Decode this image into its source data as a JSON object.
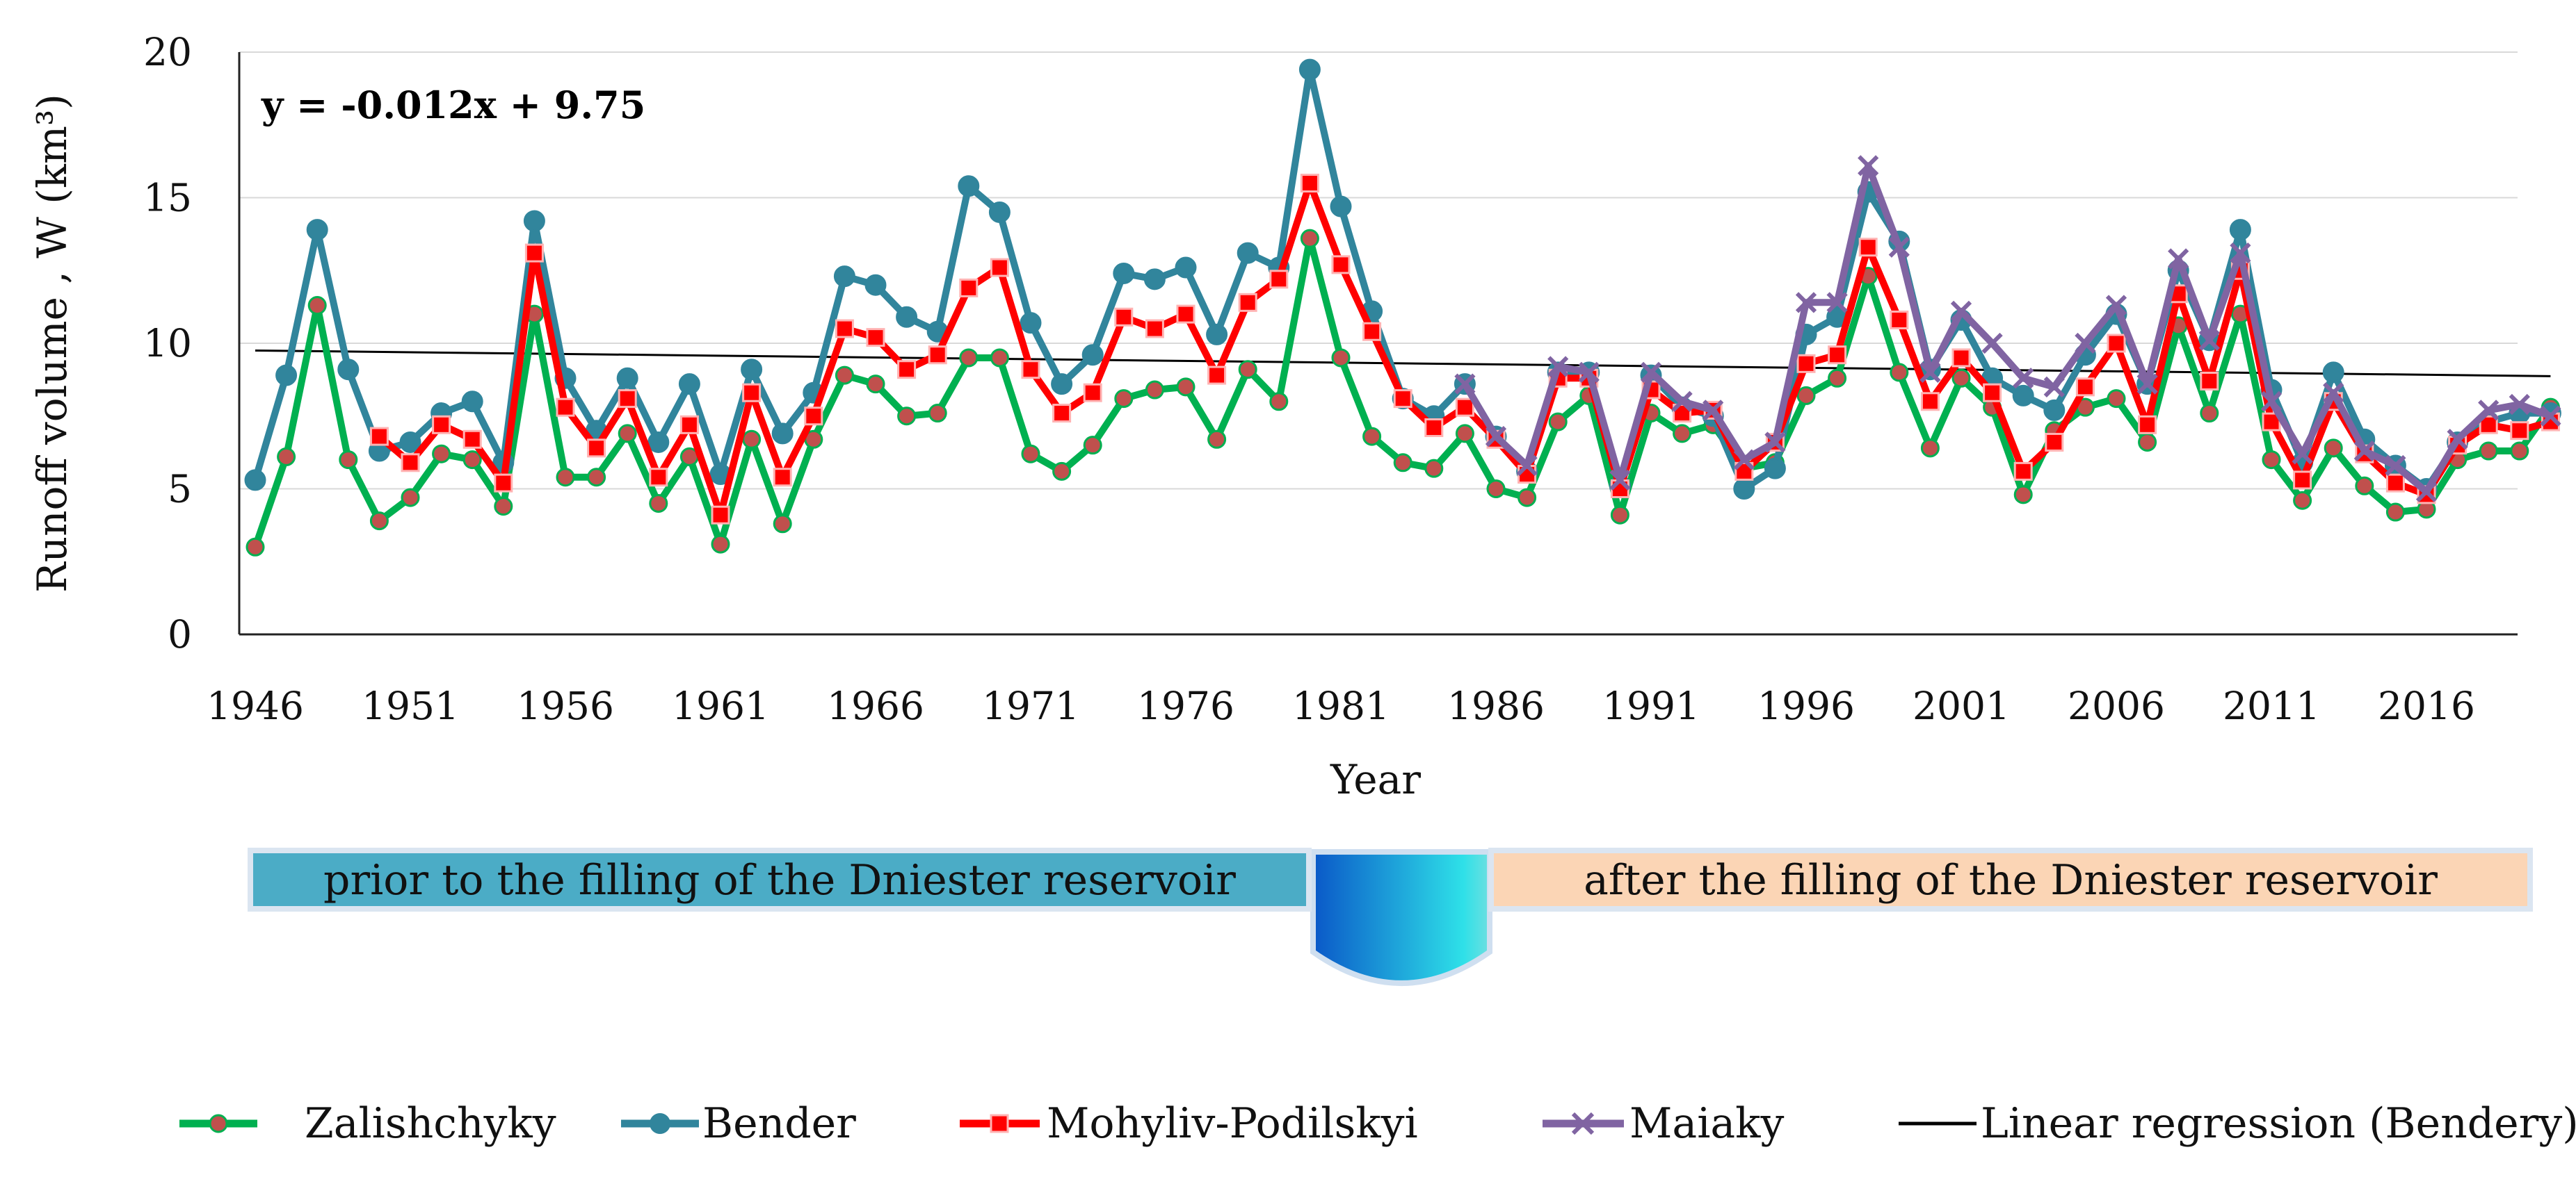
{
  "chart_data": {
    "type": "line",
    "title": "",
    "xlabel": "Year",
    "ylabel": "Runoff volume , W (km³)",
    "xlim": [
      1946,
      2020
    ],
    "ylim": [
      0,
      20
    ],
    "x_ticks": [
      "1946",
      "1951",
      "1956",
      "1961",
      "1966",
      "1971",
      "1976",
      "1981",
      "1986",
      "1991",
      "1996",
      "2001",
      "2006",
      "2011",
      "2016"
    ],
    "y_ticks": [
      "0",
      "5",
      "10",
      "15",
      "20"
    ],
    "grid": true,
    "legend_position": "bottom",
    "annotation": "y = -0.012x + 9.75",
    "regression": {
      "name": "Linear regression (Bendery)",
      "x0": 1946,
      "y0": 9.75,
      "x1": 2020,
      "y1": 8.87,
      "color": "#000000"
    },
    "periods": [
      {
        "label": "prior to the filling of the Dniester reservoir",
        "color": "#4bacc6"
      },
      {
        "label": "after the filling of the Dniester reservoir",
        "color": "#fbd5b5"
      }
    ],
    "series": [
      {
        "name": "Zalishchyky",
        "color": "#00b050",
        "marker": "circle",
        "marker_color": "#c0504d",
        "start": 1946,
        "values": [
          3.0,
          6.1,
          11.3,
          6.0,
          3.9,
          4.7,
          6.2,
          6.0,
          4.4,
          11.0,
          5.4,
          5.4,
          6.9,
          4.5,
          6.1,
          3.1,
          6.7,
          3.8,
          6.7,
          8.9,
          8.6,
          7.5,
          7.6,
          9.5,
          9.5,
          6.2,
          5.6,
          6.5,
          8.1,
          8.4,
          8.5,
          6.7,
          9.1,
          8.0,
          13.6,
          9.5,
          6.8,
          5.9,
          5.7,
          6.9,
          5.0,
          4.7,
          7.3,
          8.2,
          4.1,
          7.6,
          6.9,
          7.2,
          5.7,
          5.9,
          8.2,
          8.8,
          12.3,
          9.0,
          6.4,
          8.8,
          7.8,
          4.8,
          7.0,
          7.8,
          8.1,
          6.6,
          10.6,
          7.6,
          11.0,
          6.0,
          4.6,
          6.4,
          5.1,
          4.2,
          4.3,
          6.0,
          6.3,
          6.3,
          7.8
        ]
      },
      {
        "name": "Bender",
        "color": "#31859c",
        "marker": "circle",
        "marker_color": "#31859c",
        "start": 1946,
        "values": [
          5.3,
          8.9,
          13.9,
          9.1,
          6.3,
          6.6,
          7.6,
          8.0,
          5.9,
          14.2,
          8.8,
          7.0,
          8.8,
          6.6,
          8.6,
          5.5,
          9.1,
          6.9,
          8.3,
          12.3,
          12.0,
          10.9,
          10.4,
          15.4,
          14.5,
          10.7,
          8.6,
          9.6,
          12.4,
          12.2,
          12.6,
          10.3,
          13.1,
          12.6,
          19.4,
          14.7,
          11.1,
          8.1,
          7.5,
          8.6,
          6.8,
          5.6,
          9.0,
          9.0,
          5.1,
          8.9,
          7.8,
          7.5,
          5.0,
          5.7,
          10.3,
          10.9,
          15.2,
          13.5,
          9.1,
          10.8,
          8.8,
          8.2,
          7.7,
          9.6,
          11.0,
          8.6,
          12.5,
          10.1,
          13.9,
          8.4,
          5.9,
          9.0,
          6.7,
          5.8,
          5.0,
          6.6,
          7.3,
          7.6,
          7.6
        ]
      },
      {
        "name": "Mohyliv-Podilskyi",
        "color": "#ff0000",
        "marker": "star",
        "marker_color": "#ff0000",
        "start": 1946,
        "values": [
          null,
          null,
          null,
          null,
          6.8,
          5.9,
          7.2,
          6.7,
          5.2,
          13.1,
          7.8,
          6.4,
          8.1,
          5.4,
          7.2,
          4.1,
          8.3,
          5.4,
          7.5,
          10.5,
          10.2,
          9.1,
          9.6,
          11.9,
          12.6,
          9.1,
          7.6,
          8.3,
          10.9,
          10.5,
          11.0,
          8.9,
          11.4,
          12.2,
          15.5,
          12.7,
          10.4,
          8.1,
          7.1,
          7.8,
          6.7,
          5.5,
          8.8,
          8.8,
          5.0,
          8.4,
          7.6,
          7.7,
          5.6,
          6.6,
          9.3,
          9.6,
          13.3,
          10.8,
          8.0,
          9.5,
          8.3,
          5.6,
          6.6,
          8.5,
          10.0,
          7.2,
          11.7,
          8.7,
          12.5,
          7.3,
          5.3,
          8.0,
          6.2,
          5.2,
          4.8,
          6.5,
          7.2,
          7.0,
          7.3
        ]
      },
      {
        "name": "Maiaky",
        "color": "#8064a2",
        "marker": "x",
        "marker_color": "#8064a2",
        "start": 1946,
        "values": [
          null,
          null,
          null,
          null,
          null,
          null,
          null,
          null,
          null,
          null,
          null,
          null,
          null,
          null,
          null,
          null,
          null,
          null,
          null,
          null,
          null,
          null,
          null,
          null,
          null,
          null,
          null,
          null,
          null,
          null,
          null,
          null,
          null,
          null,
          null,
          null,
          null,
          null,
          null,
          8.6,
          6.8,
          5.8,
          9.2,
          9.0,
          5.3,
          9.0,
          8.0,
          7.7,
          6.0,
          6.6,
          11.4,
          11.4,
          16.1,
          13.3,
          9.0,
          11.1,
          10.0,
          8.8,
          8.5,
          10.0,
          11.3,
          8.6,
          12.9,
          10.1,
          13.1,
          8.0,
          6.2,
          8.3,
          6.3,
          5.8,
          4.9,
          6.7,
          7.7,
          7.9,
          7.5
        ]
      }
    ]
  }
}
